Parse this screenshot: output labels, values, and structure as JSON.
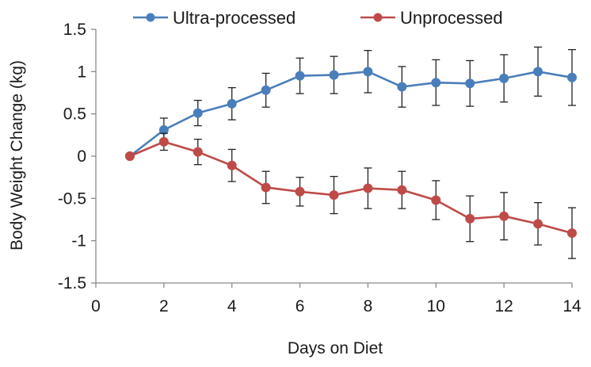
{
  "chart_data": {
    "type": "line",
    "xlabel": "Days on Diet",
    "ylabel": "Body Weight Change (kg)",
    "xlim": [
      0,
      14
    ],
    "ylim": [
      -1.5,
      1.5
    ],
    "xticks": [
      0,
      2,
      4,
      6,
      8,
      10,
      12,
      14
    ],
    "yticks": [
      -1.5,
      -1,
      -0.5,
      0,
      0.5,
      1,
      1.5
    ],
    "ytick_labels": [
      "-1.5",
      "-1",
      "-0.5",
      "0",
      "0.5",
      "1",
      "1.5"
    ],
    "x": [
      1,
      2,
      3,
      4,
      5,
      6,
      7,
      8,
      9,
      10,
      11,
      12,
      13,
      14
    ],
    "grid": false,
    "legend_position": "top",
    "series": [
      {
        "name": "Ultra-processed",
        "color": "#4a7ebb",
        "values": [
          0,
          0.31,
          0.51,
          0.62,
          0.78,
          0.95,
          0.96,
          1.0,
          0.82,
          0.87,
          0.86,
          0.92,
          1.0,
          0.93
        ],
        "errors": [
          0,
          0.14,
          0.15,
          0.19,
          0.2,
          0.21,
          0.22,
          0.25,
          0.24,
          0.27,
          0.27,
          0.28,
          0.29,
          0.33
        ]
      },
      {
        "name": "Unprocessed",
        "color": "#be4b48",
        "values": [
          0,
          0.17,
          0.05,
          -0.11,
          -0.37,
          -0.42,
          -0.46,
          -0.38,
          -0.4,
          -0.52,
          -0.74,
          -0.71,
          -0.8,
          -0.91
        ],
        "errors": [
          0,
          0.1,
          0.15,
          0.19,
          0.19,
          0.17,
          0.22,
          0.24,
          0.22,
          0.23,
          0.27,
          0.28,
          0.25,
          0.3
        ]
      }
    ]
  }
}
